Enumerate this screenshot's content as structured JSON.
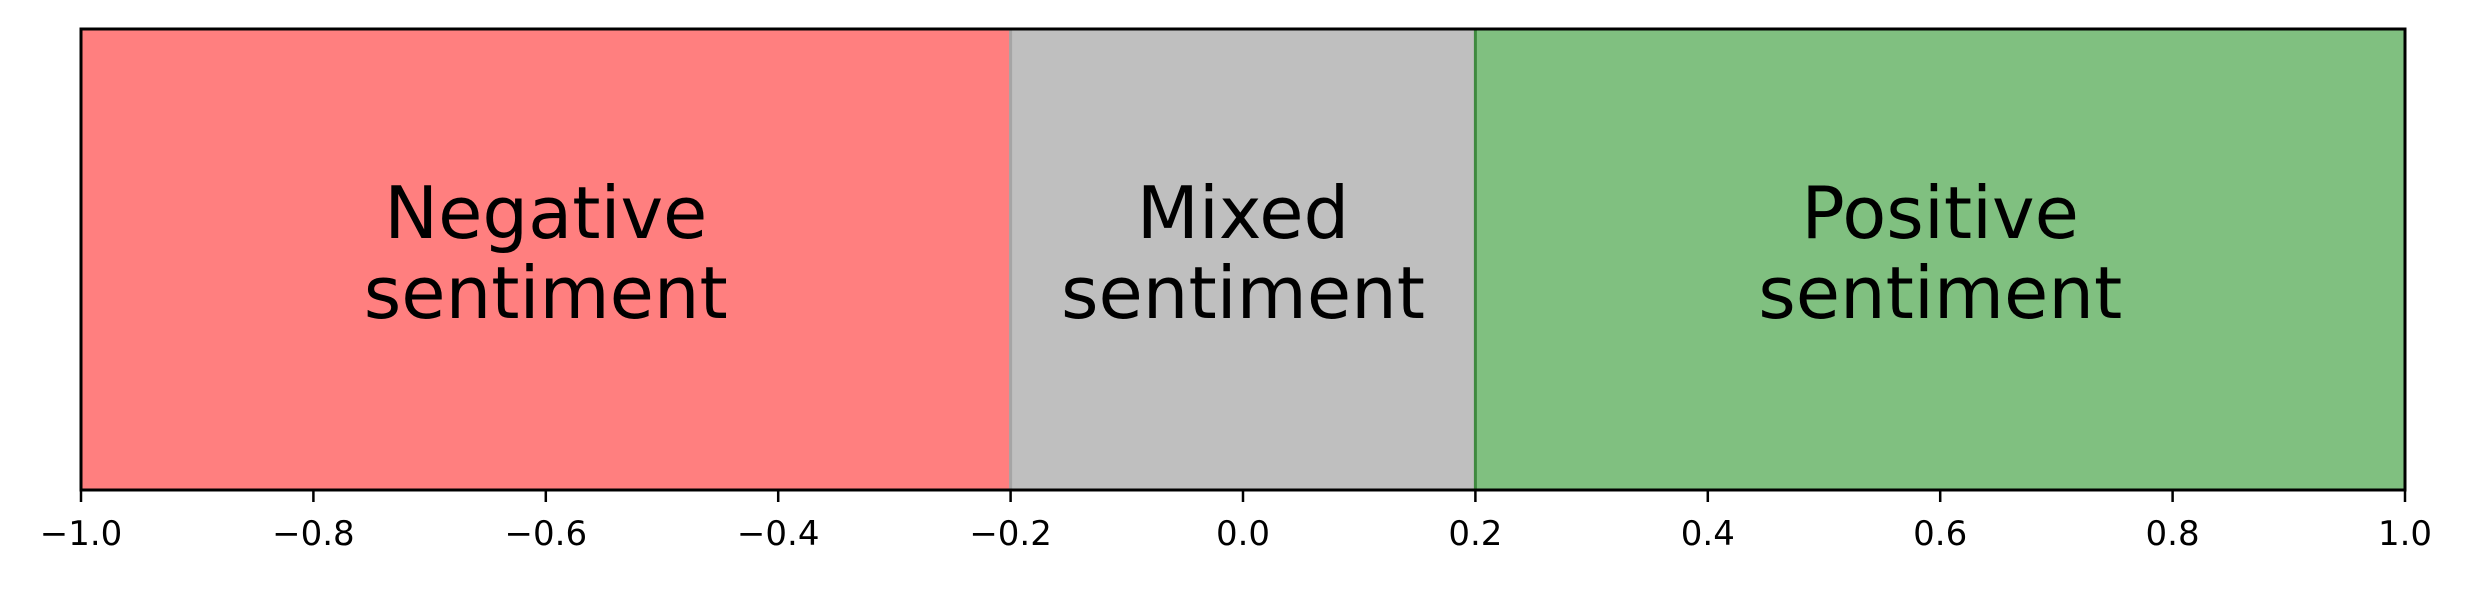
{
  "chart_data": {
    "type": "bar",
    "title": "",
    "xlabel": "",
    "ylabel": "",
    "xlim": [
      -1.0,
      1.0
    ],
    "grid": false,
    "regions": [
      {
        "label_line1": "Negative",
        "label_line2": "sentiment",
        "start": -1.0,
        "end": -0.2,
        "color": "#ff7f7f",
        "edge_color": "#e06a6a"
      },
      {
        "label_line1": "Mixed",
        "label_line2": "sentiment",
        "start": -0.2,
        "end": 0.2,
        "color": "#bfbfbf",
        "edge_color": "#a5a5a5"
      },
      {
        "label_line1": "Positive",
        "label_line2": "sentiment",
        "start": 0.2,
        "end": 1.0,
        "color": "#80c080",
        "edge_color": "#3f8a3f"
      }
    ],
    "x_ticks": [
      -1.0,
      -0.8,
      -0.6,
      -0.4,
      -0.2,
      0.0,
      0.2,
      0.4,
      0.6,
      0.8,
      1.0
    ],
    "x_tick_labels": [
      "−1.0",
      "−0.8",
      "−0.6",
      "−0.4",
      "−0.2",
      "0.0",
      "0.2",
      "0.4",
      "0.6",
      "0.8",
      "1.0"
    ]
  }
}
